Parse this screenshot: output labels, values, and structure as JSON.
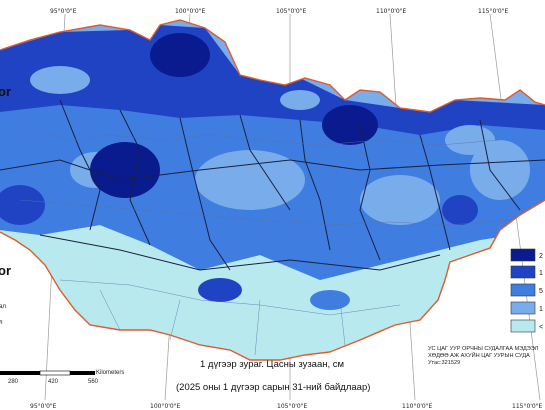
{
  "graticule": {
    "top_labels": [
      "95°0'0\"E",
      "100°0'0\"E",
      "105°0'0\"E",
      "110°0'0\"E",
      "115°0'0\"E"
    ],
    "bottom_labels": [
      "95°0'0\"E",
      "100°0'0\"E",
      "105°0'0\"E",
      "110°0'0\"E",
      "115°0'0\"E"
    ]
  },
  "caption": {
    "line1": "1 дүгээр зураг. Цасны зузаан, см",
    "line2": "(2025 оны 1 дүгээр сарын 31-ний байдлаар)"
  },
  "agency": {
    "line1": "УС ЦАГ УУР ОРЧНЫ СУДАЛГАА МЭДЭЭЛ",
    "line2": "ХӨДӨӨ АЖ АХУЙН ЦАГ УУРЫН СУДА",
    "line3": "Утас:321529"
  },
  "legend": {
    "items": [
      {
        "label": "2",
        "color": "#0a1b8f"
      },
      {
        "label": "1",
        "color": "#2043c4"
      },
      {
        "label": "5",
        "color": "#3f7ee0"
      },
      {
        "label": "1",
        "color": "#79aceb"
      },
      {
        "label": "<",
        "color": "#b7e9ef"
      }
    ]
  },
  "scalebar": {
    "unit": "Kilometers",
    "ticks": [
      "280",
      "420",
      "560"
    ]
  },
  "left_fragments": {
    "letters": "or",
    "small1": "ал",
    "small2": "л"
  },
  "colors": {
    "deepest": "#0a1b8f",
    "deep": "#2043c4",
    "mid": "#3f7ee0",
    "light": "#79aceb",
    "pale": "#b7e9ef",
    "border": "#e05a2a"
  }
}
